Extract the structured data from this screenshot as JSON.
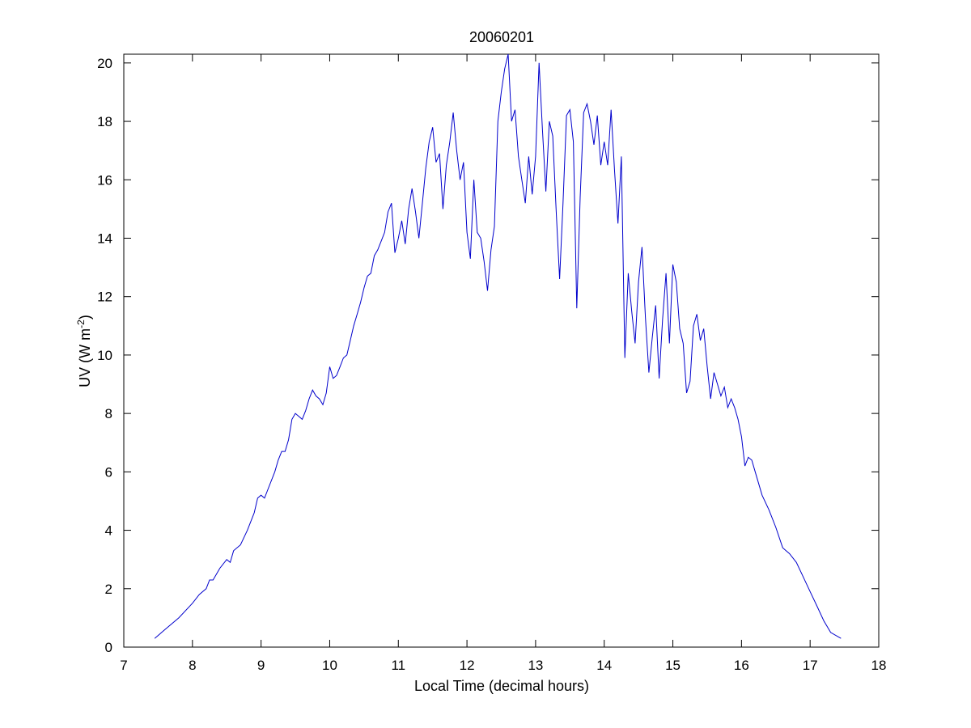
{
  "chart_data": {
    "type": "line",
    "title": "20060201",
    "xlabel": "Local Time (decimal hours)",
    "ylabel": {
      "base": "UV (W m",
      "superscript": "-2",
      "suffix": ")"
    },
    "xlim": [
      7,
      18
    ],
    "ylim": [
      0,
      20.3
    ],
    "xticks": [
      7,
      8,
      9,
      10,
      11,
      12,
      13,
      14,
      15,
      16,
      17,
      18
    ],
    "yticks": [
      0,
      2,
      4,
      6,
      8,
      10,
      12,
      14,
      16,
      18,
      20
    ],
    "grid": false,
    "line_color": "#0000cc",
    "series": [
      {
        "x": [
          7.45,
          7.6,
          7.8,
          8.0,
          8.1,
          8.2,
          8.25,
          8.3,
          8.4,
          8.5,
          8.55,
          8.6,
          8.7,
          8.8,
          8.9,
          8.95,
          9.0,
          9.05,
          9.1,
          9.2,
          9.25,
          9.3,
          9.35,
          9.4,
          9.45,
          9.5,
          9.55,
          9.6,
          9.65,
          9.7,
          9.75,
          9.8,
          9.85,
          9.9,
          9.95,
          10.0,
          10.05,
          10.1,
          10.15,
          10.2,
          10.25,
          10.3,
          10.35,
          10.4,
          10.45,
          10.5,
          10.55,
          10.6,
          10.65,
          10.7,
          10.75,
          10.8,
          10.85,
          10.9,
          10.95,
          11.0,
          11.05,
          11.1,
          11.15,
          11.2,
          11.25,
          11.3,
          11.35,
          11.4,
          11.45,
          11.5,
          11.55,
          11.6,
          11.65,
          11.7,
          11.75,
          11.8,
          11.85,
          11.9,
          11.95,
          12.0,
          12.05,
          12.1,
          12.15,
          12.2,
          12.25,
          12.3,
          12.35,
          12.4,
          12.45,
          12.5,
          12.55,
          12.6,
          12.65,
          12.7,
          12.75,
          12.8,
          12.85,
          12.9,
          12.95,
          13.0,
          13.05,
          13.1,
          13.15,
          13.2,
          13.25,
          13.3,
          13.35,
          13.4,
          13.45,
          13.5,
          13.55,
          13.6,
          13.65,
          13.7,
          13.75,
          13.8,
          13.85,
          13.9,
          13.95,
          14.0,
          14.05,
          14.1,
          14.15,
          14.2,
          14.25,
          14.3,
          14.35,
          14.4,
          14.45,
          14.5,
          14.55,
          14.6,
          14.65,
          14.7,
          14.75,
          14.8,
          14.85,
          14.9,
          14.95,
          15.0,
          15.05,
          15.1,
          15.15,
          15.2,
          15.25,
          15.3,
          15.35,
          15.4,
          15.45,
          15.5,
          15.55,
          15.6,
          15.65,
          15.7,
          15.75,
          15.8,
          15.85,
          15.9,
          15.95,
          16.0,
          16.05,
          16.1,
          16.15,
          16.2,
          16.3,
          16.4,
          16.5,
          16.6,
          16.7,
          16.8,
          16.9,
          17.0,
          17.1,
          17.2,
          17.3,
          17.45
        ],
        "y": [
          0.3,
          0.6,
          1.0,
          1.5,
          1.8,
          2.0,
          2.3,
          2.3,
          2.7,
          3.0,
          2.9,
          3.3,
          3.5,
          4.0,
          4.6,
          5.1,
          5.2,
          5.1,
          5.4,
          6.0,
          6.4,
          6.7,
          6.7,
          7.1,
          7.8,
          8.0,
          7.9,
          7.8,
          8.1,
          8.5,
          8.8,
          8.6,
          8.5,
          8.3,
          8.7,
          9.6,
          9.2,
          9.3,
          9.6,
          9.9,
          10.0,
          10.5,
          11.0,
          11.4,
          11.8,
          12.3,
          12.7,
          12.8,
          13.4,
          13.6,
          13.9,
          14.2,
          14.9,
          15.2,
          13.5,
          14.0,
          14.6,
          13.8,
          15.0,
          15.7,
          14.9,
          14.0,
          15.2,
          16.4,
          17.3,
          17.8,
          16.6,
          16.9,
          15.0,
          16.5,
          17.3,
          18.3,
          17.0,
          16.0,
          16.6,
          14.2,
          13.3,
          16.0,
          14.2,
          14.0,
          13.2,
          12.2,
          13.6,
          14.4,
          18.0,
          19.0,
          19.8,
          20.3,
          18.0,
          18.4,
          16.8,
          16.0,
          15.2,
          16.8,
          15.5,
          16.8,
          20.0,
          17.7,
          15.6,
          18.0,
          17.5,
          14.9,
          12.6,
          15.2,
          18.2,
          18.4,
          17.3,
          11.6,
          15.4,
          18.3,
          18.6,
          18.0,
          17.2,
          18.2,
          16.5,
          17.3,
          16.5,
          18.4,
          16.3,
          14.5,
          16.8,
          9.9,
          12.8,
          11.5,
          10.4,
          12.5,
          13.7,
          11.3,
          9.4,
          10.6,
          11.7,
          9.2,
          11.2,
          12.8,
          10.4,
          13.1,
          12.5,
          10.9,
          10.4,
          8.7,
          9.1,
          11.0,
          11.4,
          10.5,
          10.9,
          9.6,
          8.5,
          9.4,
          9.0,
          8.6,
          8.9,
          8.2,
          8.5,
          8.2,
          7.8,
          7.2,
          6.2,
          6.5,
          6.4,
          6.0,
          5.2,
          4.7,
          4.1,
          3.4,
          3.2,
          2.9,
          2.4,
          1.9,
          1.4,
          0.9,
          0.5,
          0.3
        ]
      }
    ]
  }
}
